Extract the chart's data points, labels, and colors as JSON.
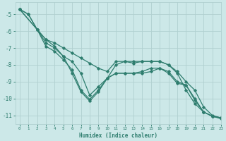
{
  "xlabel": "Humidex (Indice chaleur)",
  "background_color": "#cce8e8",
  "grid_color": "#b0d0d0",
  "line_color": "#2e7d6e",
  "xlim": [
    -0.5,
    23
  ],
  "ylim": [
    -11.5,
    -4.3
  ],
  "yticks": [
    -5,
    -6,
    -7,
    -8,
    -9,
    -10,
    -11
  ],
  "xticks": [
    0,
    1,
    2,
    3,
    4,
    5,
    6,
    7,
    8,
    9,
    10,
    11,
    12,
    13,
    14,
    15,
    16,
    17,
    18,
    19,
    20,
    21,
    22,
    23
  ],
  "series": [
    {
      "x": [
        0,
        1,
        2,
        3,
        4,
        5,
        6,
        7,
        8,
        9,
        10,
        11,
        12,
        13,
        14,
        15,
        16,
        17,
        18,
        19,
        20,
        21,
        22,
        23
      ],
      "y": [
        -4.7,
        -5.0,
        -5.9,
        -6.5,
        -6.7,
        -7.0,
        -7.3,
        -7.6,
        -7.9,
        -8.2,
        -8.4,
        -7.8,
        -7.8,
        -7.9,
        -7.8,
        -7.8,
        -7.8,
        -8.0,
        -8.4,
        -9.0,
        -9.5,
        -10.5,
        -11.0,
        -11.15
      ]
    },
    {
      "x": [
        0,
        1,
        2,
        3,
        4,
        5,
        6,
        7,
        8,
        9,
        10,
        11,
        12,
        13,
        14,
        15,
        16,
        17,
        18,
        19,
        20,
        21,
        22,
        23
      ],
      "y": [
        -4.7,
        -5.0,
        -5.9,
        -6.7,
        -7.0,
        -7.5,
        -7.8,
        -8.5,
        -9.8,
        -9.3,
        -8.8,
        -8.0,
        -7.8,
        -7.8,
        -7.8,
        -7.8,
        -7.8,
        -8.0,
        -8.5,
        -9.5,
        -10.3,
        -10.8,
        -11.05,
        -11.15
      ]
    },
    {
      "x": [
        0,
        2,
        3,
        4,
        5,
        6,
        7,
        8,
        9,
        10,
        11,
        12,
        13,
        14,
        15,
        16,
        17,
        18,
        19,
        20,
        21,
        22,
        23
      ],
      "y": [
        -4.7,
        -5.9,
        -6.9,
        -7.2,
        -7.7,
        -8.3,
        -9.5,
        -10.05,
        -9.5,
        -8.8,
        -8.5,
        -8.5,
        -8.5,
        -8.5,
        -8.4,
        -8.2,
        -8.5,
        -9.1,
        -9.2,
        -10.1,
        -10.8,
        -11.05,
        -11.15
      ]
    },
    {
      "x": [
        0,
        2,
        3,
        4,
        5,
        6,
        7,
        8,
        9,
        10,
        11,
        12,
        13,
        14,
        15,
        16,
        17,
        18,
        19,
        20,
        21,
        22,
        23
      ],
      "y": [
        -4.7,
        -5.9,
        -6.5,
        -6.9,
        -7.5,
        -8.5,
        -9.6,
        -10.15,
        -9.6,
        -8.8,
        -8.5,
        -8.5,
        -8.5,
        -8.4,
        -8.2,
        -8.2,
        -8.4,
        -9.0,
        -9.2,
        -10.0,
        -10.8,
        -11.05,
        -11.2
      ]
    }
  ]
}
